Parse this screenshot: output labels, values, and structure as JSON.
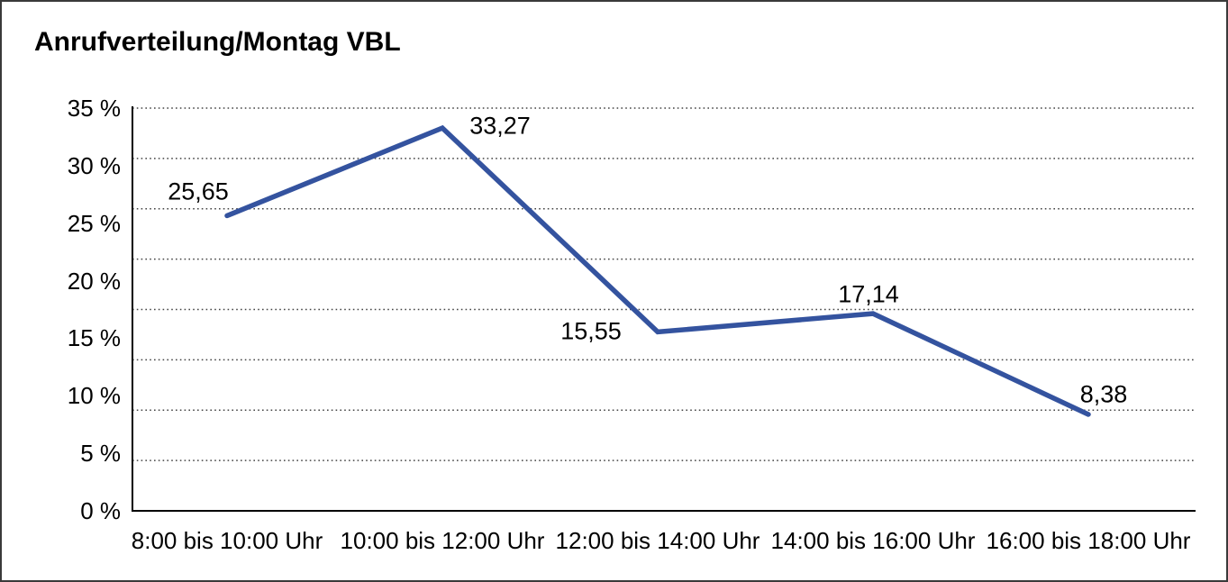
{
  "window": {
    "background": "#ffffff",
    "border_color": "#3a3a3a"
  },
  "title": "Anrufverteilung/Montag VBL",
  "chart_data": {
    "type": "line",
    "title": "Anrufverteilung/Montag VBL",
    "categories": [
      "8:00 bis 10:00 Uhr",
      "10:00 bis 12:00 Uhr",
      "12:00 bis 14:00 Uhr",
      "14:00 bis 16:00 Uhr",
      "16:00 bis 18:00 Uhr"
    ],
    "values": [
      25.65,
      33.27,
      15.55,
      17.14,
      8.38
    ],
    "value_labels": [
      "25,65",
      "33,27",
      "15,55",
      "17,14",
      "8,38"
    ],
    "y_tick_labels": [
      "0 %",
      "5 %",
      "10 %",
      "15 %",
      "20 %",
      "25 %",
      "30 %",
      "35 %"
    ],
    "ylim": [
      0,
      35
    ],
    "xlabel": "",
    "ylabel": "",
    "legend": "none",
    "grid": "dotted-horizontal",
    "gridline_intervals": 8,
    "line_color": "#34539F",
    "axis_color": "#000000",
    "gridline_color": "#444444",
    "text_color": "#000000"
  }
}
